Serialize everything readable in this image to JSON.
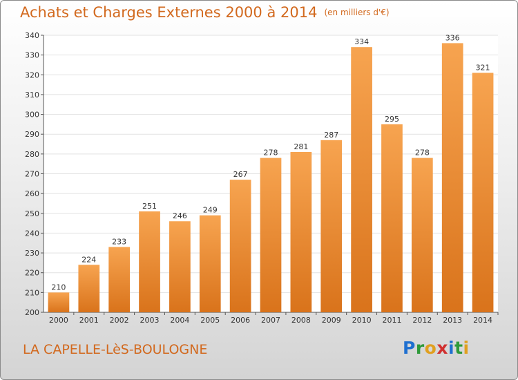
{
  "header": {
    "title": "Achats et Charges Externes 2000 à 2014",
    "unit": "(en milliers d'€)"
  },
  "footer": {
    "commune": "LA CAPELLE-LèS-BOULOGNE",
    "logo_letters": [
      "P",
      "r",
      "o",
      "x",
      "i",
      "t",
      "i"
    ],
    "logo_colors": [
      "#1e6fd0",
      "#2e9a3a",
      "#e0a020",
      "#d03030",
      "#1e6fd0",
      "#2e9a3a",
      "#e0a020"
    ]
  },
  "chart_data": {
    "type": "bar",
    "categories": [
      "2000",
      "2001",
      "2002",
      "2003",
      "2004",
      "2005",
      "2006",
      "2007",
      "2008",
      "2009",
      "2010",
      "2011",
      "2012",
      "2013",
      "2014"
    ],
    "values": [
      210,
      224,
      233,
      251,
      246,
      249,
      267,
      278,
      281,
      287,
      334,
      295,
      278,
      336,
      321
    ],
    "ylim": [
      200,
      340
    ],
    "yticks": [
      200,
      210,
      220,
      230,
      240,
      250,
      260,
      270,
      280,
      290,
      300,
      310,
      320,
      330,
      340
    ],
    "grid": true,
    "bar_color": "#f0913a",
    "title": "Achats et Charges Externes 2000 à 2014",
    "xlabel": "",
    "ylabel": ""
  }
}
